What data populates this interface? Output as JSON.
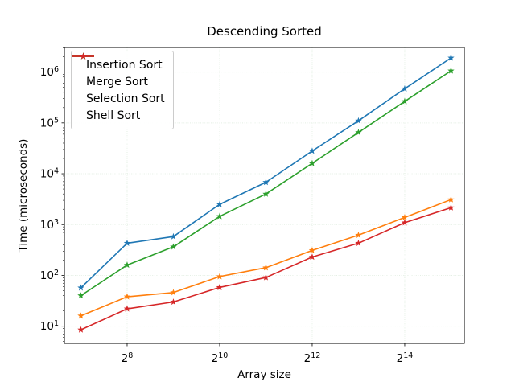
{
  "chart_data": {
    "type": "line",
    "title": "Descending Sorted",
    "xlabel": "Array size",
    "ylabel": "Time (microseconds)",
    "x_scale": "log2",
    "y_scale": "log10",
    "xlim": [
      100,
      40000
    ],
    "ylim": [
      4.6,
      3050000
    ],
    "grid": true,
    "grid_color": "#e4efe4",
    "legend_position": "upper left",
    "marker": "star",
    "x": [
      128,
      256,
      512,
      1024,
      2048,
      4096,
      8192,
      16384,
      32768
    ],
    "x_ticks": [
      {
        "value": 256,
        "base": "2",
        "exp": "8"
      },
      {
        "value": 1024,
        "base": "2",
        "exp": "10"
      },
      {
        "value": 4096,
        "base": "2",
        "exp": "12"
      },
      {
        "value": 16384,
        "base": "2",
        "exp": "14"
      }
    ],
    "y_ticks": [
      {
        "value": 10,
        "base": "10",
        "exp": "1"
      },
      {
        "value": 100,
        "base": "10",
        "exp": "2"
      },
      {
        "value": 1000,
        "base": "10",
        "exp": "3"
      },
      {
        "value": 10000,
        "base": "10",
        "exp": "4"
      },
      {
        "value": 100000,
        "base": "10",
        "exp": "5"
      },
      {
        "value": 1000000,
        "base": "10",
        "exp": "6"
      }
    ],
    "series": [
      {
        "name": "Insertion Sort",
        "color": "#1f77b4",
        "values": [
          57,
          430,
          580,
          2500,
          6800,
          28000,
          110000,
          470000,
          1900000
        ]
      },
      {
        "name": "Merge Sort",
        "color": "#ff7f0e",
        "values": [
          16,
          38,
          46,
          95,
          142,
          310,
          620,
          1380,
          3100
        ]
      },
      {
        "name": "Selection Sort",
        "color": "#2ca02c",
        "values": [
          40,
          160,
          365,
          1450,
          4000,
          16000,
          65000,
          265000,
          1060000
        ]
      },
      {
        "name": "Shell Sort",
        "color": "#d62728",
        "values": [
          8.5,
          22,
          30,
          58,
          91,
          230,
          430,
          1090,
          2150
        ]
      }
    ]
  }
}
